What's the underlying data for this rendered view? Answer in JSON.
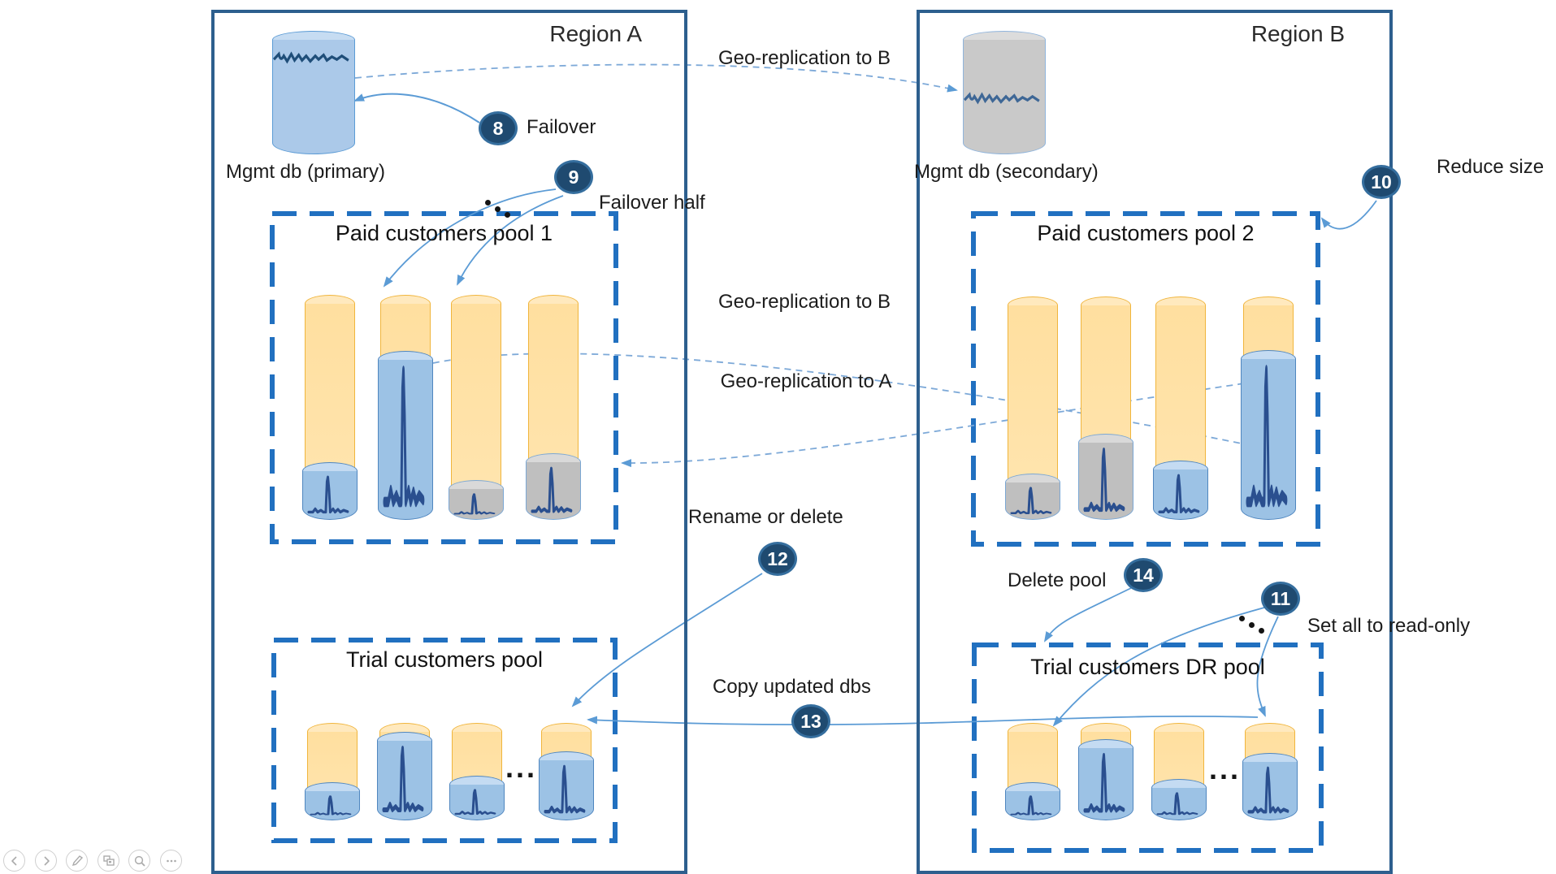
{
  "regions": {
    "a": {
      "title": "Region A",
      "mgmt_db_label": "Mgmt db (primary)"
    },
    "b": {
      "title": "Region B",
      "mgmt_db_label": "Mgmt db (secondary)"
    }
  },
  "pools": [
    {
      "id": "paid-pool-1",
      "region": "a",
      "title": "Paid customers pool 1",
      "databases": [
        {
          "fill": "blue",
          "level": 0.23
        },
        {
          "fill": "blue",
          "level": 0.73
        },
        {
          "fill": "gray",
          "level": 0.15
        },
        {
          "fill": "gray",
          "level": 0.27
        }
      ]
    },
    {
      "id": "paid-pool-2",
      "region": "b",
      "title": "Paid customers pool 2",
      "databases": [
        {
          "fill": "gray",
          "level": 0.18
        },
        {
          "fill": "gray",
          "level": 0.36
        },
        {
          "fill": "blue",
          "level": 0.24
        },
        {
          "fill": "blue",
          "level": 0.74
        }
      ]
    },
    {
      "id": "trial-pool",
      "region": "a",
      "title": "Trial customers pool",
      "ellipsis": "...",
      "databases": [
        {
          "fill": "blue",
          "level": 0.33
        },
        {
          "fill": "blue",
          "level": 0.86
        },
        {
          "fill": "blue",
          "level": 0.4
        },
        {
          "fill": "blue",
          "level": 0.66
        }
      ]
    },
    {
      "id": "trial-dr-pool",
      "region": "b",
      "title": "Trial customers DR pool",
      "ellipsis": "...",
      "databases": [
        {
          "fill": "blue",
          "level": 0.33
        },
        {
          "fill": "blue",
          "level": 0.79
        },
        {
          "fill": "blue",
          "level": 0.37
        },
        {
          "fill": "blue",
          "level": 0.64
        }
      ]
    }
  ],
  "annotations": {
    "geo_replication_top": "Geo-replication to B",
    "geo_replication_mid_to_b": "Geo-replication to B",
    "geo_replication_mid_to_a": "Geo-replication to A",
    "dots": "..."
  },
  "steps": [
    {
      "number": "8",
      "label": "Failover"
    },
    {
      "number": "9",
      "label": "Failover half"
    },
    {
      "number": "10",
      "label": "Reduce size"
    },
    {
      "number": "11",
      "label": "Set all to read-only"
    },
    {
      "number": "12",
      "label": "Rename or delete"
    },
    {
      "number": "13",
      "label": "Copy updated dbs"
    },
    {
      "number": "14",
      "label": "Delete pool"
    }
  ],
  "toolbar": {
    "icons": [
      "previous-slide",
      "next-slide",
      "pen",
      "see-all-slides",
      "zoom-magnifier",
      "more-options"
    ]
  },
  "colors": {
    "region_border": "#2d5f8e",
    "pool_border": "#2170c0",
    "arrow": "#5b9bd5",
    "badge": "#1f4a70",
    "cyl_orange_border": "#ffc000",
    "cyl_blue_body": "#9cc2e5",
    "cyl_gray_body": "#bfbfbf",
    "waveform": "#2a4f8f"
  }
}
